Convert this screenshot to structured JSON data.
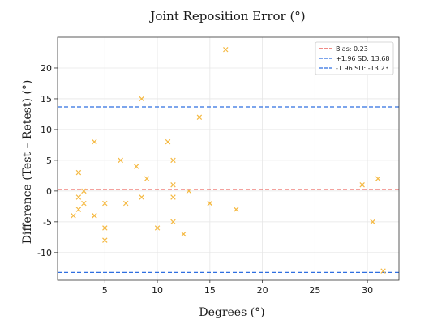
{
  "chart_data": {
    "type": "scatter",
    "title": "Joint Reposition Error (°)",
    "xlabel": "Degrees (°)",
    "ylabel": "Difference (Test – Retest) (°)",
    "xlim": [
      0.5,
      33
    ],
    "ylim": [
      -14.5,
      25
    ],
    "xticks": [
      5,
      10,
      15,
      20,
      25,
      30
    ],
    "yticks": [
      -10,
      -5,
      0,
      5,
      10,
      15,
      20
    ],
    "grid": true,
    "legend_position": "top-right",
    "marker": "x",
    "point_color": "#f5b942",
    "points": [
      {
        "x": 2,
        "y": -4
      },
      {
        "x": 2.5,
        "y": 3
      },
      {
        "x": 2.5,
        "y": -1
      },
      {
        "x": 2.5,
        "y": -3
      },
      {
        "x": 3,
        "y": -2
      },
      {
        "x": 3,
        "y": 0
      },
      {
        "x": 4,
        "y": 8
      },
      {
        "x": 4,
        "y": -4
      },
      {
        "x": 4,
        "y": -4
      },
      {
        "x": 5,
        "y": -2
      },
      {
        "x": 5,
        "y": -6
      },
      {
        "x": 5,
        "y": -8
      },
      {
        "x": 6.5,
        "y": 5
      },
      {
        "x": 7,
        "y": -2
      },
      {
        "x": 8,
        "y": 4
      },
      {
        "x": 8.5,
        "y": 15
      },
      {
        "x": 8.5,
        "y": -1
      },
      {
        "x": 9,
        "y": 2
      },
      {
        "x": 10,
        "y": -6
      },
      {
        "x": 11,
        "y": 8
      },
      {
        "x": 11.5,
        "y": 5
      },
      {
        "x": 11.5,
        "y": 1
      },
      {
        "x": 11.5,
        "y": -1
      },
      {
        "x": 11.5,
        "y": -5
      },
      {
        "x": 12.5,
        "y": -7
      },
      {
        "x": 13,
        "y": 0
      },
      {
        "x": 14,
        "y": 12
      },
      {
        "x": 15,
        "y": -2
      },
      {
        "x": 15,
        "y": -2
      },
      {
        "x": 16.5,
        "y": 23
      },
      {
        "x": 17.5,
        "y": -3
      },
      {
        "x": 29.5,
        "y": 1
      },
      {
        "x": 30.5,
        "y": -5
      },
      {
        "x": 31,
        "y": 2
      },
      {
        "x": 31.5,
        "y": -13
      }
    ],
    "reference_lines": [
      {
        "label": "Bias: 0.23",
        "y": 0.23,
        "color": "#e8453c"
      },
      {
        "label": "+1.96 SD: 13.68",
        "y": 13.68,
        "color": "#2f6fe0"
      },
      {
        "label": "-1.96 SD: -13.23",
        "y": -13.23,
        "color": "#2f6fe0"
      }
    ]
  }
}
